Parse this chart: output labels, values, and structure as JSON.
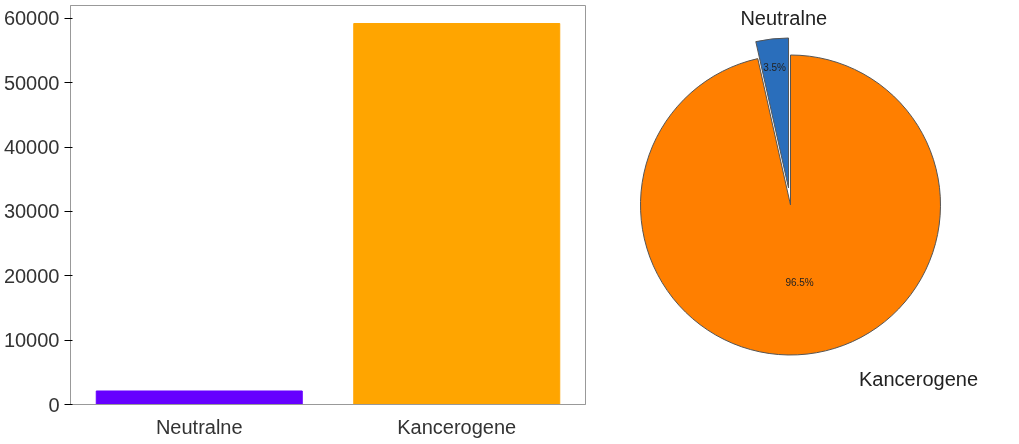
{
  "chart_data": [
    {
      "type": "bar",
      "categories": [
        "Neutralne",
        "Kancerogene"
      ],
      "values": [
        2100,
        59200
      ],
      "colors": [
        "#6600ff",
        "#ffa500"
      ],
      "ylim": [
        0,
        62000
      ],
      "yticks": [
        0,
        10000,
        20000,
        30000,
        40000,
        50000,
        60000
      ],
      "grid": false
    },
    {
      "type": "pie",
      "categories": [
        "Neutralne",
        "Kancerogene"
      ],
      "values": [
        3.5,
        96.5
      ],
      "colors": [
        "#2a6ebb",
        "#ff7f00"
      ],
      "value_labels": [
        "3.5%",
        "96.5%"
      ]
    }
  ]
}
